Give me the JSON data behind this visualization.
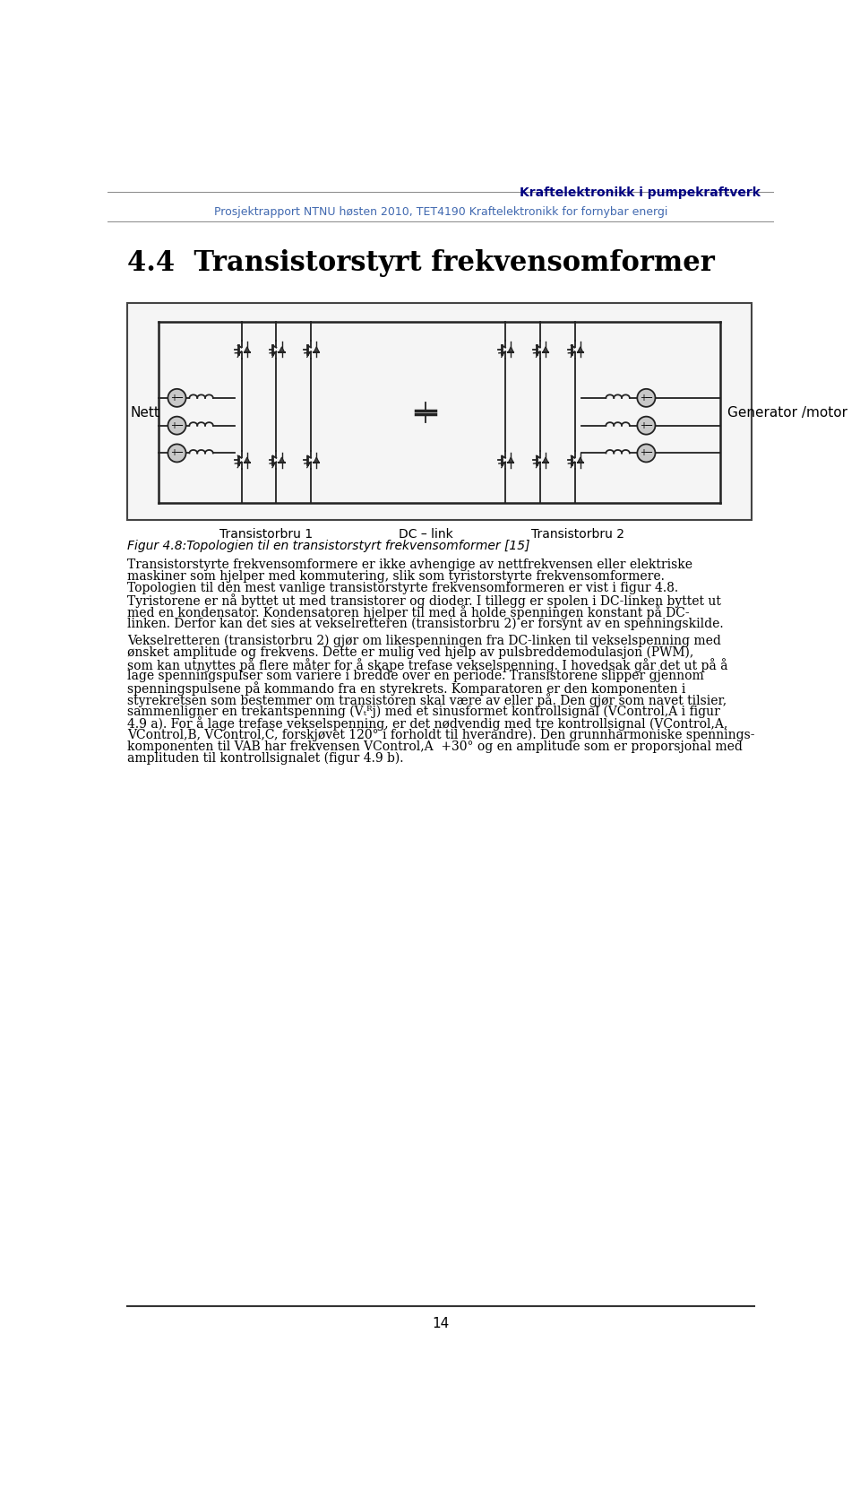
{
  "header_title": "Kraftelektronikk i pumpekraftverk",
  "header_subtitle": "Prosjektrapport NTNU høsten 2010, TET4190 Kraftelektronikk for fornybar energi",
  "section_title": "4.4  Transistorstyrt frekvensomformer",
  "figure_caption": "Figur 4.8:Topologien til en transistorstyrt frekvensomformer [15]",
  "page_number": "14",
  "header_title_color": "#000080",
  "header_subtitle_color": "#4169B0",
  "bg_color": "#ffffff",
  "text_color": "#000000",
  "label_nett": "Nett",
  "label_generator": "Generator /motor",
  "label_bru1": "Transistorbru 1",
  "label_dc": "DC – link",
  "label_bru2": "Transistorbru 2",
  "p1_lines": [
    "Transistorstyrte frekvensomformere er ikke avhengige av nettfrekvensen eller elektriske",
    "maskiner som hjelper med kommutering, slik som tyristorstyrte frekvensomformere.",
    "Topologien til den mest vanlige transistorstyrte frekvensomformeren er vist i figur 4.8.",
    "Tyristorene er nå byttet ut med transistorer og dioder. I tillegg er spolen i DC-linken byttet ut",
    "med en kondensator. Kondensatoren hjelper til med å holde spenningen konstant på DC-",
    "linken. Derfor kan det sies at vekselretteren (transistorbru 2) er forsynt av en spenningskilde."
  ],
  "p2_lines": [
    "Vekselretteren (transistorbru 2) gjør om likespenningen fra DC-linken til vekselspenning med",
    "ønsket amplitude og frekvens. Dette er mulig ved hjelp av pulsbreddemodulasjon (PWM),",
    "som kan utnyttes på flere måter for å skape trefase vekselspenning. I hovedsak går det ut på å",
    "lage spenningspulser som variere i bredde over en periode. Transistorene slipper gjennom",
    "spenningspulsene på kommando fra en styrekrets. Komparatoren er den komponenten i",
    "styrekretsen som bestemmer om transistoren skal være av eller på. Den gjør som navet tilsier,",
    "sammenligner en trekantspenning (Vₜᴿj) med et sinusformet kontrollsignal (VControl,A i figur",
    "4.9 a). For å lage trefase vekselspenning, er det nødvendig med tre kontrollsignal (VControl,A,",
    "VControl,B, VControl,C, forskjøvet 120° i forholdt til hverandre). Den grunnharmoniske spennings-",
    "komponenten til VAB har frekvensen VControl,A  +30° og en amplitude som er proporsjonal med",
    "amplituden til kontrollsignalet (figur 4.9 b)."
  ]
}
